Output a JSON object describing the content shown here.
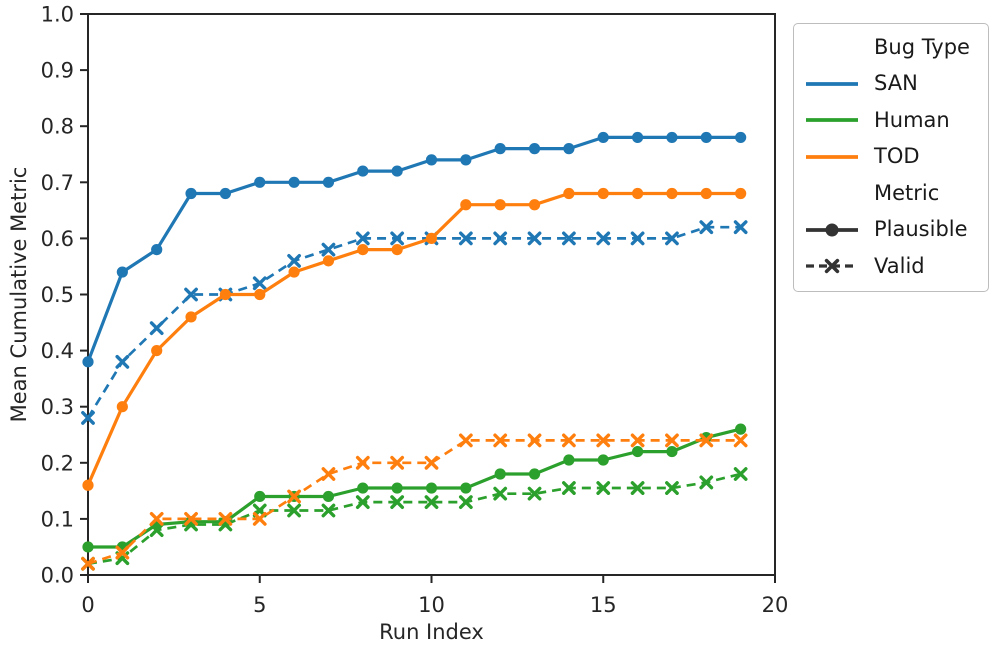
{
  "colors": {
    "axis": "#262626",
    "text": "#262626",
    "san": "#1f77b4",
    "human": "#2ca02c",
    "tod": "#ff7f0e",
    "legend_handle": "#333333",
    "background": "#ffffff"
  },
  "chart_data": {
    "type": "line",
    "title": "",
    "xlabel": "Run Index",
    "ylabel": "Mean Cumulative Metric",
    "xlim": [
      0,
      20
    ],
    "ylim": [
      0.0,
      1.0
    ],
    "xticks": [
      0,
      5,
      10,
      15,
      20
    ],
    "yticks": [
      0.0,
      0.1,
      0.2,
      0.3,
      0.4,
      0.5,
      0.6,
      0.7,
      0.8,
      0.9,
      1.0
    ],
    "grid": false,
    "legend_position": "outside upper right",
    "x": [
      0,
      1,
      2,
      3,
      4,
      5,
      6,
      7,
      8,
      9,
      10,
      11,
      12,
      13,
      14,
      15,
      16,
      17,
      18,
      19
    ],
    "series": [
      {
        "name": "SAN Plausible",
        "bug_type": "SAN",
        "metric": "Plausible",
        "color": "#1f77b4",
        "line_style": "solid",
        "marker": "circle",
        "values": [
          0.38,
          0.54,
          0.58,
          0.68,
          0.68,
          0.7,
          0.7,
          0.7,
          0.72,
          0.72,
          0.74,
          0.74,
          0.76,
          0.76,
          0.76,
          0.78,
          0.78,
          0.78,
          0.78,
          0.78
        ]
      },
      {
        "name": "SAN Valid",
        "bug_type": "SAN",
        "metric": "Valid",
        "color": "#1f77b4",
        "line_style": "dashed",
        "marker": "x",
        "values": [
          0.28,
          0.38,
          0.44,
          0.5,
          0.5,
          0.52,
          0.56,
          0.58,
          0.6,
          0.6,
          0.6,
          0.6,
          0.6,
          0.6,
          0.6,
          0.6,
          0.6,
          0.6,
          0.62,
          0.62
        ]
      },
      {
        "name": "Human Plausible",
        "bug_type": "Human",
        "metric": "Plausible",
        "color": "#2ca02c",
        "line_style": "solid",
        "marker": "circle",
        "values": [
          0.05,
          0.05,
          0.09,
          0.095,
          0.095,
          0.14,
          0.14,
          0.14,
          0.155,
          0.155,
          0.155,
          0.155,
          0.18,
          0.18,
          0.205,
          0.205,
          0.22,
          0.22,
          0.245,
          0.26
        ]
      },
      {
        "name": "Human Valid",
        "bug_type": "Human",
        "metric": "Valid",
        "color": "#2ca02c",
        "line_style": "dashed",
        "marker": "x",
        "values": [
          0.02,
          0.03,
          0.08,
          0.09,
          0.09,
          0.115,
          0.115,
          0.115,
          0.13,
          0.13,
          0.13,
          0.13,
          0.145,
          0.145,
          0.155,
          0.155,
          0.155,
          0.155,
          0.165,
          0.18
        ]
      },
      {
        "name": "TOD Plausible",
        "bug_type": "TOD",
        "metric": "Plausible",
        "color": "#ff7f0e",
        "line_style": "solid",
        "marker": "circle",
        "values": [
          0.16,
          0.3,
          0.4,
          0.46,
          0.5,
          0.5,
          0.54,
          0.56,
          0.58,
          0.58,
          0.6,
          0.66,
          0.66,
          0.66,
          0.68,
          0.68,
          0.68,
          0.68,
          0.68,
          0.68
        ]
      },
      {
        "name": "TOD Valid",
        "bug_type": "TOD",
        "metric": "Valid",
        "color": "#ff7f0e",
        "line_style": "dashed",
        "marker": "x",
        "values": [
          0.02,
          0.04,
          0.1,
          0.1,
          0.1,
          0.1,
          0.14,
          0.18,
          0.2,
          0.2,
          0.2,
          0.24,
          0.24,
          0.24,
          0.24,
          0.24,
          0.24,
          0.24,
          0.24,
          0.24
        ]
      }
    ],
    "legend": {
      "groups": [
        {
          "title": "Bug Type",
          "entries": [
            {
              "label": "SAN",
              "color": "#1f77b4",
              "line_style": "solid",
              "marker": "none"
            },
            {
              "label": "Human",
              "color": "#2ca02c",
              "line_style": "solid",
              "marker": "none"
            },
            {
              "label": "TOD",
              "color": "#ff7f0e",
              "line_style": "solid",
              "marker": "none"
            }
          ]
        },
        {
          "title": "Metric",
          "entries": [
            {
              "label": "Plausible",
              "color": "#333333",
              "line_style": "solid",
              "marker": "circle"
            },
            {
              "label": "Valid",
              "color": "#333333",
              "line_style": "dashed",
              "marker": "x"
            }
          ]
        }
      ]
    }
  }
}
